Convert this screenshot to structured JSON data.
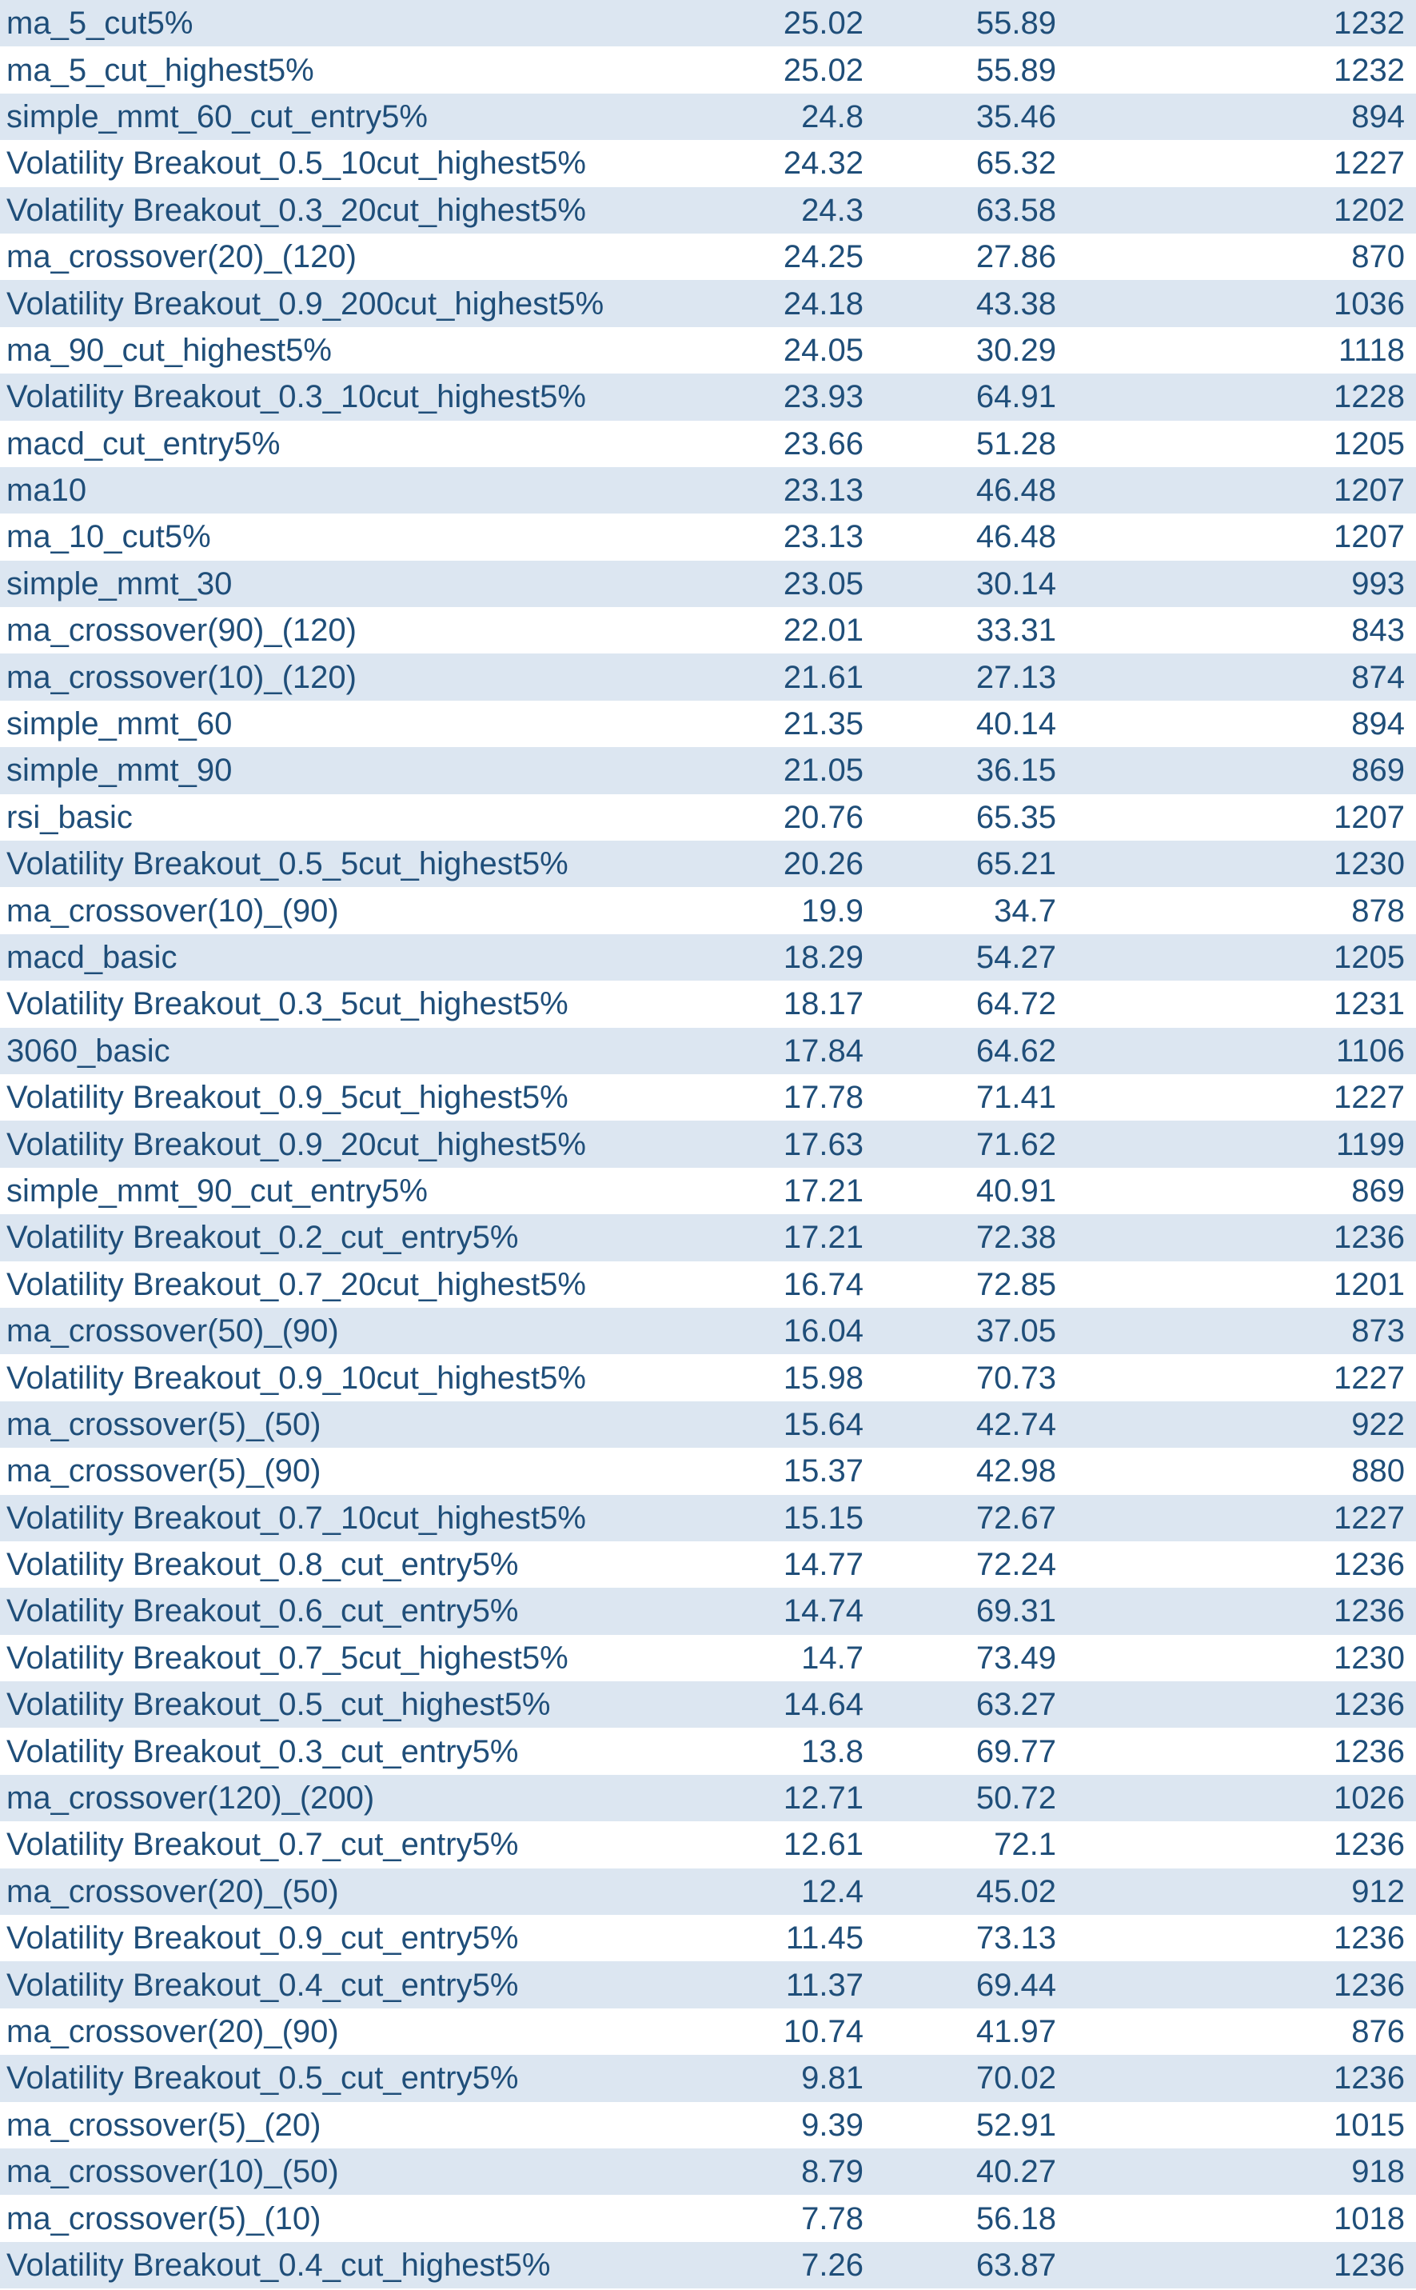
{
  "table": {
    "rows": [
      [
        "ma_5_cut5%",
        "25.02",
        "55.89",
        "1232"
      ],
      [
        "ma_5_cut_highest5%",
        "25.02",
        "55.89",
        "1232"
      ],
      [
        "simple_mmt_60_cut_entry5%",
        "24.8",
        "35.46",
        "894"
      ],
      [
        "Volatility Breakout_0.5_10cut_highest5%",
        "24.32",
        "65.32",
        "1227"
      ],
      [
        "Volatility Breakout_0.3_20cut_highest5%",
        "24.3",
        "63.58",
        "1202"
      ],
      [
        "ma_crossover(20)_(120)",
        "24.25",
        "27.86",
        "870"
      ],
      [
        "Volatility Breakout_0.9_200cut_highest5%",
        "24.18",
        "43.38",
        "1036"
      ],
      [
        "ma_90_cut_highest5%",
        "24.05",
        "30.29",
        "1118"
      ],
      [
        "Volatility Breakout_0.3_10cut_highest5%",
        "23.93",
        "64.91",
        "1228"
      ],
      [
        "macd_cut_entry5%",
        "23.66",
        "51.28",
        "1205"
      ],
      [
        "ma10",
        "23.13",
        "46.48",
        "1207"
      ],
      [
        "ma_10_cut5%",
        "23.13",
        "46.48",
        "1207"
      ],
      [
        "simple_mmt_30",
        "23.05",
        "30.14",
        "993"
      ],
      [
        "ma_crossover(90)_(120)",
        "22.01",
        "33.31",
        "843"
      ],
      [
        "ma_crossover(10)_(120)",
        "21.61",
        "27.13",
        "874"
      ],
      [
        "simple_mmt_60",
        "21.35",
        "40.14",
        "894"
      ],
      [
        "simple_mmt_90",
        "21.05",
        "36.15",
        "869"
      ],
      [
        "rsi_basic",
        "20.76",
        "65.35",
        "1207"
      ],
      [
        "Volatility Breakout_0.5_5cut_highest5%",
        "20.26",
        "65.21",
        "1230"
      ],
      [
        "ma_crossover(10)_(90)",
        "19.9",
        "34.7",
        "878"
      ],
      [
        "macd_basic",
        "18.29",
        "54.27",
        "1205"
      ],
      [
        "Volatility Breakout_0.3_5cut_highest5%",
        "18.17",
        "64.72",
        "1231"
      ],
      [
        "3060_basic",
        "17.84",
        "64.62",
        "1106"
      ],
      [
        "Volatility Breakout_0.9_5cut_highest5%",
        "17.78",
        "71.41",
        "1227"
      ],
      [
        "Volatility Breakout_0.9_20cut_highest5%",
        "17.63",
        "71.62",
        "1199"
      ],
      [
        "simple_mmt_90_cut_entry5%",
        "17.21",
        "40.91",
        "869"
      ],
      [
        "Volatility Breakout_0.2_cut_entry5%",
        "17.21",
        "72.38",
        "1236"
      ],
      [
        "Volatility Breakout_0.7_20cut_highest5%",
        "16.74",
        "72.85",
        "1201"
      ],
      [
        "ma_crossover(50)_(90)",
        "16.04",
        "37.05",
        "873"
      ],
      [
        "Volatility Breakout_0.9_10cut_highest5%",
        "15.98",
        "70.73",
        "1227"
      ],
      [
        "ma_crossover(5)_(50)",
        "15.64",
        "42.74",
        "922"
      ],
      [
        "ma_crossover(5)_(90)",
        "15.37",
        "42.98",
        "880"
      ],
      [
        "Volatility Breakout_0.7_10cut_highest5%",
        "15.15",
        "72.67",
        "1227"
      ],
      [
        "Volatility Breakout_0.8_cut_entry5%",
        "14.77",
        "72.24",
        "1236"
      ],
      [
        "Volatility Breakout_0.6_cut_entry5%",
        "14.74",
        "69.31",
        "1236"
      ],
      [
        "Volatility Breakout_0.7_5cut_highest5%",
        "14.7",
        "73.49",
        "1230"
      ],
      [
        "Volatility Breakout_0.5_cut_highest5%",
        "14.64",
        "63.27",
        "1236"
      ],
      [
        "Volatility Breakout_0.3_cut_entry5%",
        "13.8",
        "69.77",
        "1236"
      ],
      [
        "ma_crossover(120)_(200)",
        "12.71",
        "50.72",
        "1026"
      ],
      [
        "Volatility Breakout_0.7_cut_entry5%",
        "12.61",
        "72.1",
        "1236"
      ],
      [
        "ma_crossover(20)_(50)",
        "12.4",
        "45.02",
        "912"
      ],
      [
        "Volatility Breakout_0.9_cut_entry5%",
        "11.45",
        "73.13",
        "1236"
      ],
      [
        "Volatility Breakout_0.4_cut_entry5%",
        "11.37",
        "69.44",
        "1236"
      ],
      [
        "ma_crossover(20)_(90)",
        "10.74",
        "41.97",
        "876"
      ],
      [
        "Volatility Breakout_0.5_cut_entry5%",
        "9.81",
        "70.02",
        "1236"
      ],
      [
        "ma_crossover(5)_(20)",
        "9.39",
        "52.91",
        "1015"
      ],
      [
        "ma_crossover(10)_(50)",
        "8.79",
        "40.27",
        "918"
      ],
      [
        "ma_crossover(5)_(10)",
        "7.78",
        "56.18",
        "1018"
      ],
      [
        "Volatility Breakout_0.4_cut_highest5%",
        "7.26",
        "63.87",
        "1236"
      ]
    ],
    "colors": {
      "text": "#1f4e79",
      "band": "#dce6f1",
      "background": "#ffffff"
    }
  }
}
